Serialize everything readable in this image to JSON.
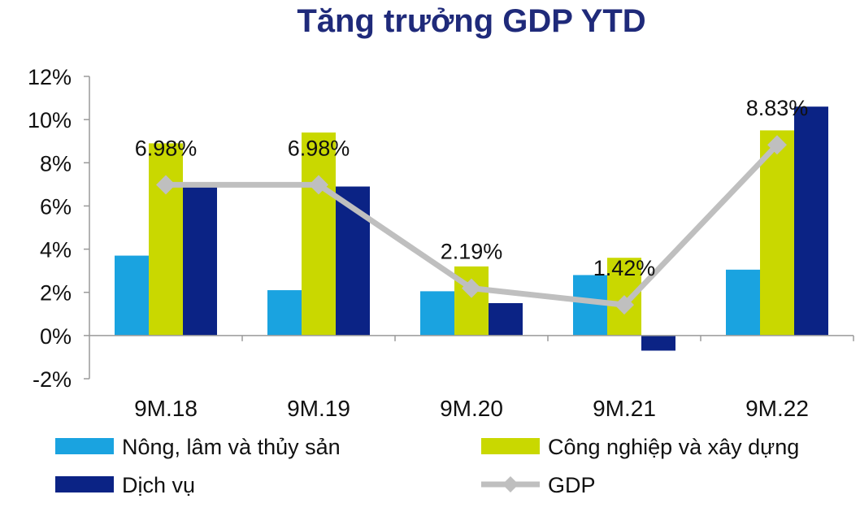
{
  "chart_data": {
    "type": "bar",
    "title": "Tăng trưởng GDP YTD",
    "categories": [
      "9M.18",
      "9M.19",
      "9M.20",
      "9M.21",
      "9M.22"
    ],
    "series": [
      {
        "name": "Nông, lâm và thủy sản",
        "type": "bar",
        "color": "#1aa3e0",
        "values": [
          3.7,
          2.1,
          2.05,
          2.8,
          3.05
        ]
      },
      {
        "name": "Công nghiệp và xây dựng",
        "type": "bar",
        "color": "#c9d800",
        "values": [
          8.9,
          9.4,
          3.2,
          3.6,
          9.5
        ]
      },
      {
        "name": "Dịch vụ",
        "type": "bar",
        "color": "#0b2385",
        "values": [
          7.0,
          6.9,
          1.5,
          -0.7,
          10.6
        ]
      },
      {
        "name": "GDP",
        "type": "line",
        "color": "#bfbfbf",
        "values": [
          6.98,
          6.98,
          2.19,
          1.42,
          8.83
        ],
        "labels": [
          "6.98%",
          "6.98%",
          "2.19%",
          "1.42%",
          "8.83%"
        ]
      }
    ],
    "ylim": [
      -2,
      12
    ],
    "yticks": [
      -2,
      0,
      2,
      4,
      6,
      8,
      10,
      12
    ],
    "ytick_labels": [
      "-2%",
      "0%",
      "2%",
      "4%",
      "6%",
      "8%",
      "10%",
      "12%"
    ],
    "xlabel": "",
    "ylabel": "",
    "legend_position": "bottom"
  }
}
